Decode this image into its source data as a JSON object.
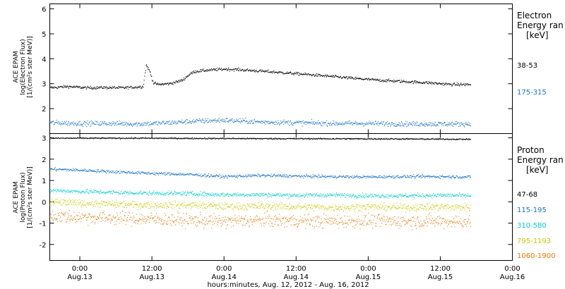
{
  "chart_data": {
    "type": "scatter",
    "xlabel": "hours:minutes, Aug. 12, 2012 - Aug. 16, 2012",
    "x_ticks": [
      {
        "time": "0:00",
        "date": "Aug.13",
        "hour": 0
      },
      {
        "time": "12:00",
        "date": "Aug.13",
        "hour": 12
      },
      {
        "time": "0:00",
        "date": "Aug.14",
        "hour": 24
      },
      {
        "time": "12:00",
        "date": "Aug.14",
        "hour": 36
      },
      {
        "time": "0:00",
        "date": "Aug.15",
        "hour": 48
      },
      {
        "time": "12:00",
        "date": "Aug.15",
        "hour": 60
      },
      {
        "time": "0:00",
        "date": "Aug.16",
        "hour": 72
      }
    ],
    "xlim_hours": [
      -5.0,
      72.0
    ],
    "panels": [
      {
        "id": "electron",
        "ylabel": [
          "ACE EPAM",
          "log(Electron Flux)",
          "[1/(cm²s ster MeV)]"
        ],
        "ylim": [
          1.0,
          6.2
        ],
        "y_ticks": [
          2,
          3,
          4,
          5,
          6
        ],
        "legend_title": [
          "Electron",
          "Energy ran",
          "[keV]"
        ],
        "series": [
          {
            "name": "38-53",
            "color": "#000000",
            "points": [
              [
                -5,
                2.85
              ],
              [
                -2,
                2.9
              ],
              [
                1,
                2.85
              ],
              [
                4,
                2.86
              ],
              [
                7,
                2.85
              ],
              [
                9,
                2.87
              ],
              [
                10.5,
                2.9
              ],
              [
                11.0,
                3.78
              ],
              [
                11.6,
                3.5
              ],
              [
                12.2,
                3.05
              ],
              [
                13,
                2.98
              ],
              [
                15,
                3.02
              ],
              [
                17,
                3.15
              ],
              [
                18,
                3.35
              ],
              [
                19,
                3.5
              ],
              [
                21,
                3.55
              ],
              [
                24,
                3.6
              ],
              [
                26,
                3.58
              ],
              [
                30,
                3.52
              ],
              [
                34,
                3.45
              ],
              [
                38,
                3.38
              ],
              [
                42,
                3.3
              ],
              [
                46,
                3.22
              ],
              [
                50,
                3.15
              ],
              [
                54,
                3.1
              ],
              [
                58,
                3.05
              ],
              [
                62,
                2.98
              ],
              [
                65,
                2.98
              ]
            ],
            "noise": 0.04
          },
          {
            "name": "175-315",
            "color": "#1874cd",
            "points": [
              [
                -5,
                1.45
              ],
              [
                0,
                1.42
              ],
              [
                5,
                1.42
              ],
              [
                10,
                1.4
              ],
              [
                15,
                1.45
              ],
              [
                20,
                1.52
              ],
              [
                24,
                1.55
              ],
              [
                30,
                1.48
              ],
              [
                36,
                1.45
              ],
              [
                42,
                1.42
              ],
              [
                48,
                1.42
              ],
              [
                54,
                1.4
              ],
              [
                60,
                1.4
              ],
              [
                65,
                1.4
              ]
            ],
            "noise": 0.07
          }
        ]
      },
      {
        "id": "proton",
        "ylabel": [
          "ACE EPAM",
          "log(Proton Flux)",
          "[1/(cm²s ster MeV)]"
        ],
        "ylim": [
          -2.75,
          3.2
        ],
        "y_ticks": [
          -2,
          -1,
          0,
          1,
          2,
          3
        ],
        "legend_title": [
          "Proton",
          "Energy ran",
          "[keV]"
        ],
        "series": [
          {
            "name": "47-68",
            "color": "#000000",
            "points": [
              [
                -5,
                3.0
              ],
              [
                10,
                3.0
              ],
              [
                30,
                2.98
              ],
              [
                50,
                2.97
              ],
              [
                65,
                2.95
              ]
            ],
            "noise": 0.02
          },
          {
            "name": "115-195",
            "color": "#1874cd",
            "points": [
              [
                -5,
                1.55
              ],
              [
                0,
                1.5
              ],
              [
                6,
                1.42
              ],
              [
                12,
                1.35
              ],
              [
                18,
                1.3
              ],
              [
                24,
                1.2
              ],
              [
                30,
                1.25
              ],
              [
                36,
                1.22
              ],
              [
                42,
                1.2
              ],
              [
                48,
                1.18
              ],
              [
                54,
                1.2
              ],
              [
                60,
                1.2
              ],
              [
                65,
                1.18
              ]
            ],
            "noise": 0.05
          },
          {
            "name": "310-580",
            "color": "#00cdcd",
            "points": [
              [
                -5,
                0.55
              ],
              [
                0,
                0.5
              ],
              [
                6,
                0.45
              ],
              [
                12,
                0.42
              ],
              [
                18,
                0.4
              ],
              [
                24,
                0.35
              ],
              [
                30,
                0.35
              ],
              [
                36,
                0.32
              ],
              [
                42,
                0.33
              ],
              [
                48,
                0.3
              ],
              [
                54,
                0.3
              ],
              [
                60,
                0.32
              ],
              [
                65,
                0.3
              ]
            ],
            "noise": 0.07
          },
          {
            "name": "795-1193",
            "color": "#c8c800",
            "points": [
              [
                -5,
                0.0
              ],
              [
                0,
                -0.05
              ],
              [
                6,
                -0.1
              ],
              [
                12,
                -0.15
              ],
              [
                18,
                -0.12
              ],
              [
                24,
                -0.2
              ],
              [
                30,
                -0.2
              ],
              [
                36,
                -0.22
              ],
              [
                42,
                -0.25
              ],
              [
                48,
                -0.22
              ],
              [
                54,
                -0.25
              ],
              [
                60,
                -0.22
              ],
              [
                65,
                -0.25
              ]
            ],
            "noise": 0.12
          },
          {
            "name": "1060-1900",
            "color": "#ee7600",
            "points": [
              [
                -5,
                -0.65
              ],
              [
                0,
                -0.7
              ],
              [
                6,
                -0.75
              ],
              [
                12,
                -0.8
              ],
              [
                18,
                -0.85
              ],
              [
                24,
                -0.9
              ],
              [
                30,
                -0.85
              ],
              [
                36,
                -0.88
              ],
              [
                42,
                -0.9
              ],
              [
                48,
                -0.88
              ],
              [
                54,
                -0.9
              ],
              [
                60,
                -0.9
              ],
              [
                65,
                -0.92
              ]
            ],
            "noise": 0.22
          }
        ]
      }
    ]
  }
}
